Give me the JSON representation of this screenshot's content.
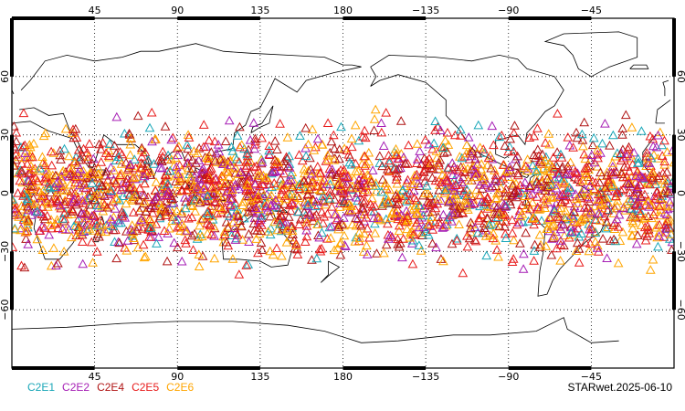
{
  "chart_data": {
    "type": "scatter",
    "marker": "open-triangle",
    "projection": "cylindrical equidistant",
    "center_longitude": 180,
    "grid": true,
    "grid_style": "dotted",
    "xlim": [
      0,
      360
    ],
    "ylim": [
      -90,
      90
    ],
    "x_ticks": [
      45,
      90,
      135,
      180,
      -135,
      -90,
      -45
    ],
    "y_ticks": [
      60,
      30,
      0,
      -30,
      -60
    ],
    "x_tick_labels": [
      "45",
      "90",
      "135",
      "180",
      "−135",
      "−90",
      "−45"
    ],
    "y_tick_labels": [
      "60",
      "30",
      "0",
      "−30",
      "−60"
    ],
    "legend_position": "bottom-left",
    "series": [
      {
        "name": "C2E1",
        "color": "#1aa7b8"
      },
      {
        "name": "C2E2",
        "color": "#a61fb5"
      },
      {
        "name": "C2E4",
        "color": "#b01515"
      },
      {
        "name": "C2E5",
        "color": "#e81c1c"
      },
      {
        "name": "C2E6",
        "color": "#ffa500"
      }
    ],
    "coverage_lat_range": [
      -45,
      45
    ],
    "stamp": "STARwet.2025-06-10"
  }
}
